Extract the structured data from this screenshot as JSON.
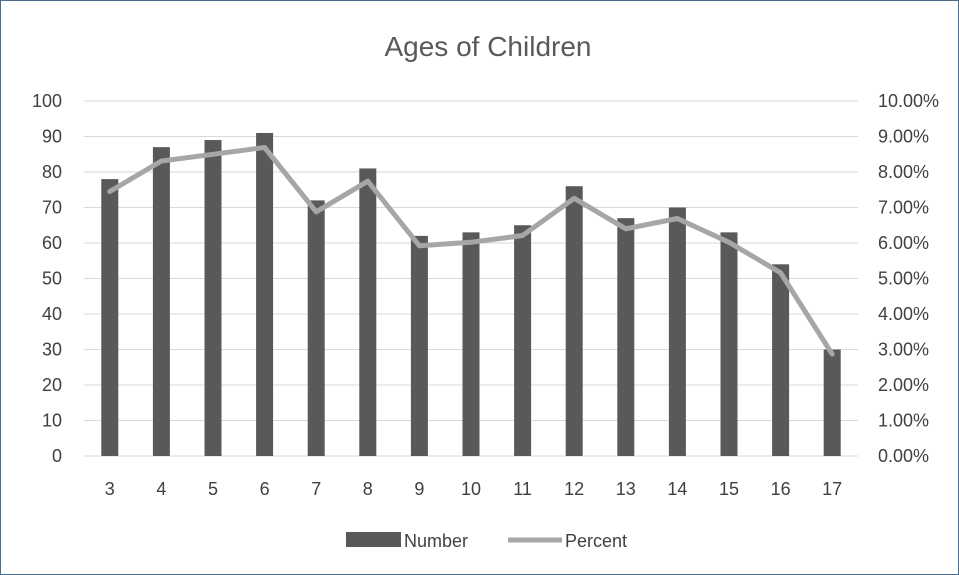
{
  "chart_data": {
    "type": "bar",
    "title": "Ages of Children",
    "categories": [
      "3",
      "4",
      "5",
      "6",
      "7",
      "8",
      "9",
      "10",
      "11",
      "12",
      "13",
      "14",
      "15",
      "16",
      "17"
    ],
    "series": [
      {
        "name": "Number",
        "type": "bar",
        "axis": "left",
        "color": "#595959",
        "values": [
          78,
          87,
          89,
          91,
          72,
          81,
          62,
          63,
          65,
          76,
          67,
          70,
          63,
          54,
          30
        ]
      },
      {
        "name": "Percent",
        "type": "line",
        "axis": "right",
        "color": "#a6a6a6",
        "values": [
          7.45,
          8.31,
          8.5,
          8.69,
          6.88,
          7.74,
          5.92,
          6.02,
          6.21,
          7.26,
          6.4,
          6.69,
          6.02,
          5.16,
          2.87
        ]
      }
    ],
    "y_left": {
      "min": 0,
      "max": 100,
      "step": 10,
      "ticks": [
        "0",
        "10",
        "20",
        "30",
        "40",
        "50",
        "60",
        "70",
        "80",
        "90",
        "100"
      ]
    },
    "y_right": {
      "min": 0,
      "max": 10,
      "step": 1,
      "ticks": [
        "0.00%",
        "1.00%",
        "2.00%",
        "3.00%",
        "4.00%",
        "5.00%",
        "6.00%",
        "7.00%",
        "8.00%",
        "9.00%",
        "10.00%"
      ]
    },
    "grid": true,
    "legend_position": "bottom",
    "gridline_color": "#d9d9d9"
  }
}
